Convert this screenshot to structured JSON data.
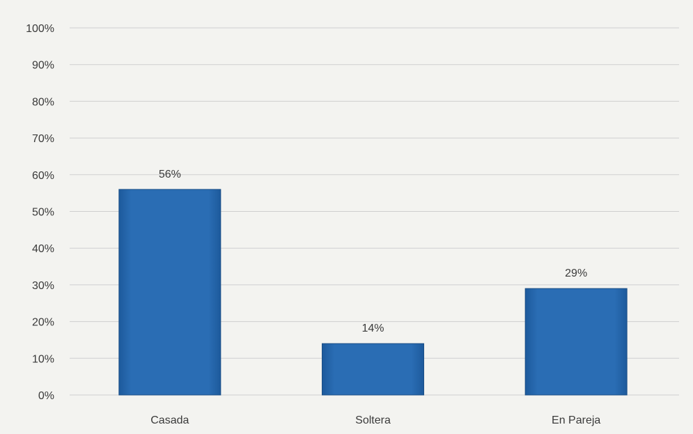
{
  "chart_data": {
    "type": "bar",
    "categories": [
      "Casada",
      "Soltera",
      "En Pareja"
    ],
    "values": [
      56,
      14,
      29
    ],
    "value_labels": [
      "56%",
      "14%",
      "29%"
    ],
    "y_ticks": [
      "0%",
      "10%",
      "20%",
      "30%",
      "40%",
      "50%",
      "60%",
      "70%",
      "80%",
      "90%",
      "100%"
    ],
    "ylim": [
      0,
      100
    ],
    "grid": true,
    "legend": "none",
    "colors": {
      "bar": "#2566ab",
      "bar_edge": "#1c4f86",
      "grid": "#cfcfcf",
      "background": "#f3f3f0"
    }
  }
}
